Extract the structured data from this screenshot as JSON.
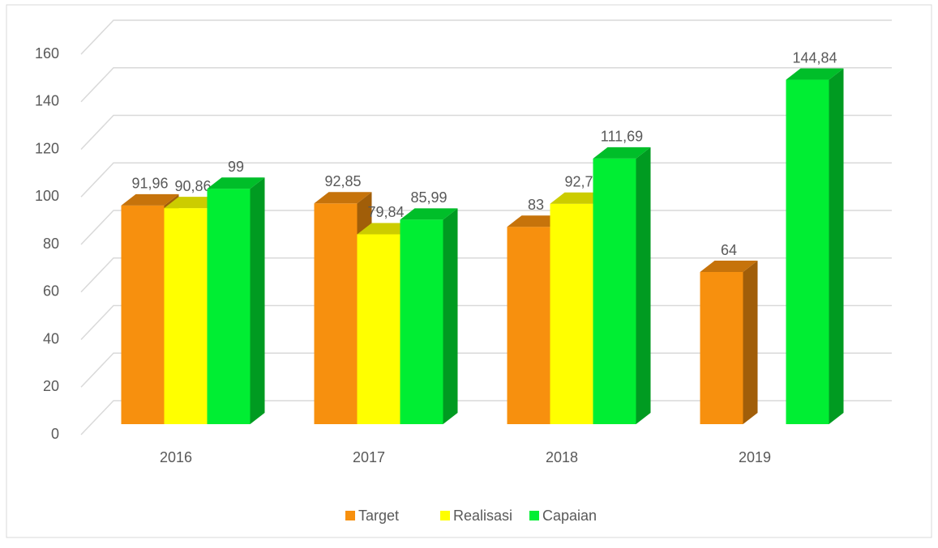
{
  "chart_data": {
    "type": "bar3d",
    "categories": [
      "2016",
      "2017",
      "2018",
      "2019"
    ],
    "series": [
      {
        "name": "Target",
        "color": "#f7900e",
        "values": [
          91.96,
          92.85,
          83,
          64
        ],
        "value_labels": [
          "91,96",
          "92,85",
          "83",
          "64"
        ]
      },
      {
        "name": "Realisasi",
        "color": "#ffff00",
        "values": [
          90.86,
          79.84,
          92.7,
          null
        ],
        "value_labels": [
          "90,86",
          "79,84",
          "92,7",
          null
        ]
      },
      {
        "name": "Capaian",
        "color": "#00ee33",
        "values": [
          99,
          85.99,
          111.69,
          144.84
        ],
        "value_labels": [
          "99",
          "85,99",
          "111,69",
          "144,84"
        ]
      }
    ],
    "ylim": [
      0,
      160
    ],
    "yticks": [
      0,
      20,
      40,
      60,
      80,
      100,
      120,
      140,
      160
    ],
    "grid": true,
    "legend": "bottom"
  }
}
